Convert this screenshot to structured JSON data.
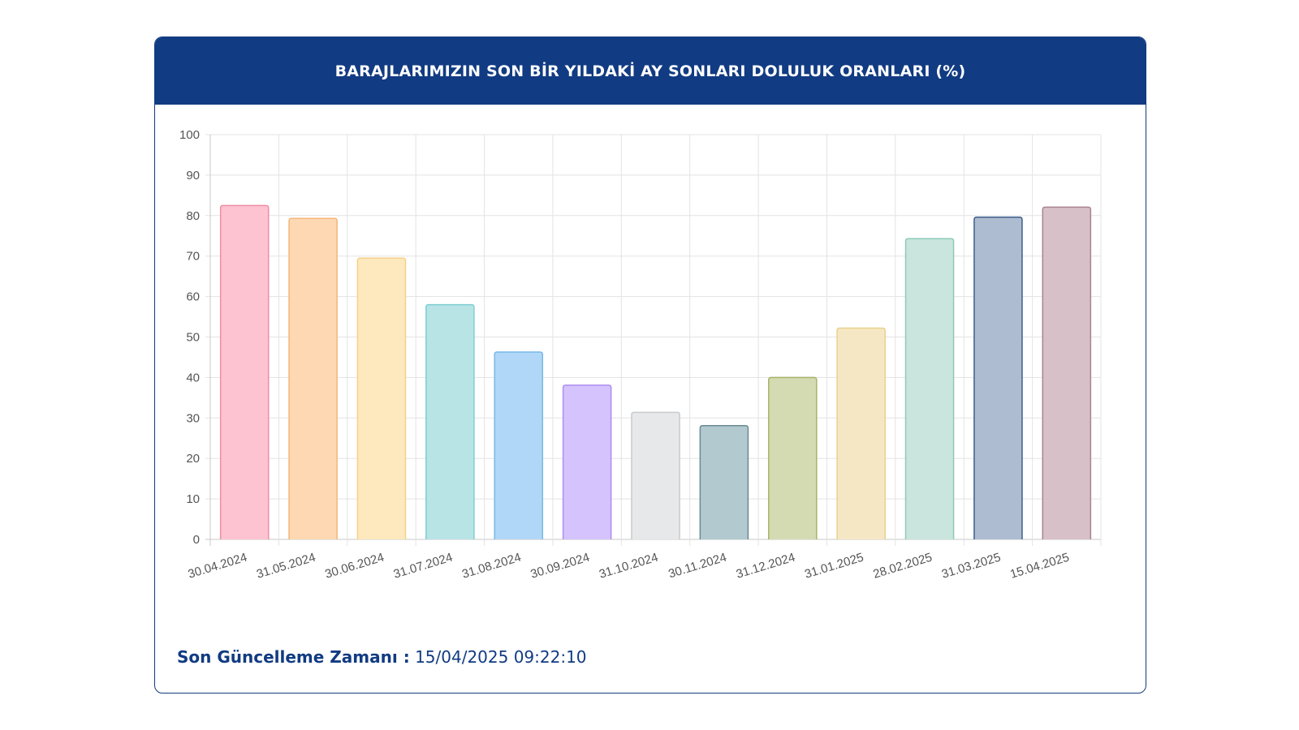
{
  "header": {
    "title": "BARAJLARIMIZIN SON BİR YILDAKİ AY SONLARI DOLULUK ORANLARI (%)"
  },
  "footer": {
    "label": "Son Güncelleme Zamanı :",
    "value": "15/04/2025 09:22:10"
  },
  "colors": {
    "header_bg": "#113b82",
    "border": "#123b7f",
    "grid": "#e3e3e3",
    "axis_text": "#555555"
  },
  "chart_data": {
    "type": "bar",
    "title": "BARAJLARIMIZIN SON BİR YILDAKİ AY SONLARI DOLULUK ORANLARI (%)",
    "xlabel": "",
    "ylabel": "",
    "ylim": [
      0,
      100
    ],
    "yticks": [
      0,
      10,
      20,
      30,
      40,
      50,
      60,
      70,
      80,
      90,
      100
    ],
    "grid": true,
    "legend": "none",
    "categories": [
      "30.04.2024",
      "31.05.2024",
      "30.06.2024",
      "31.07.2024",
      "31.08.2024",
      "30.09.2024",
      "31.10.2024",
      "30.11.2024",
      "31.12.2024",
      "31.01.2025",
      "28.02.2025",
      "31.03.2025",
      "15.04.2025"
    ],
    "values": [
      82.5,
      79.3,
      69.5,
      58.0,
      46.3,
      38.1,
      31.4,
      28.1,
      40.0,
      52.2,
      74.3,
      79.6,
      82.1
    ],
    "bar_fill_colors": [
      "#fec3d0",
      "#fdd8b2",
      "#fee8bd",
      "#b9e4e6",
      "#b0d7f7",
      "#d5c3fe",
      "#e6e8ea",
      "#b2cacf",
      "#d4dbb2",
      "#f6e7c4",
      "#c9e5dd",
      "#adbcd0",
      "#d7c0c7"
    ],
    "bar_border_colors": [
      "#ef8ea5",
      "#f4b57a",
      "#f5d18a",
      "#7ccfd2",
      "#79b8e8",
      "#ad8df0",
      "#c8cbce",
      "#6b8a92",
      "#a7b36a",
      "#e8d18e",
      "#8dcbb8",
      "#3e5f8c",
      "#a98490"
    ]
  }
}
